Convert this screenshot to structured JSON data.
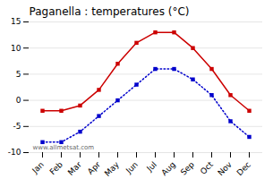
{
  "chart_data": {
    "type": "line",
    "title": "Paganella : temperatures (°C)",
    "categories": [
      "Jan",
      "Feb",
      "Mar",
      "Apr",
      "May",
      "Jun",
      "Jul",
      "Aug",
      "Sep",
      "Oct",
      "Nov",
      "Dec"
    ],
    "series": [
      {
        "color": "#cc0000",
        "marker": "square",
        "line_style": "solid",
        "values": [
          -2,
          -2,
          -1,
          2,
          7,
          11,
          13,
          13,
          10,
          6,
          1,
          -2
        ]
      },
      {
        "color": "#0000cc",
        "marker": "square",
        "line_style": "dotted",
        "values": [
          -8,
          -8,
          -6,
          -3,
          0,
          3,
          6,
          6,
          4,
          1,
          -4,
          -7
        ]
      }
    ],
    "ylim": [
      -10,
      15
    ],
    "yticks": [
      -10,
      -5,
      0,
      5,
      10,
      15
    ],
    "grid": true,
    "annotations": [
      "www.allmetsat.com"
    ]
  }
}
